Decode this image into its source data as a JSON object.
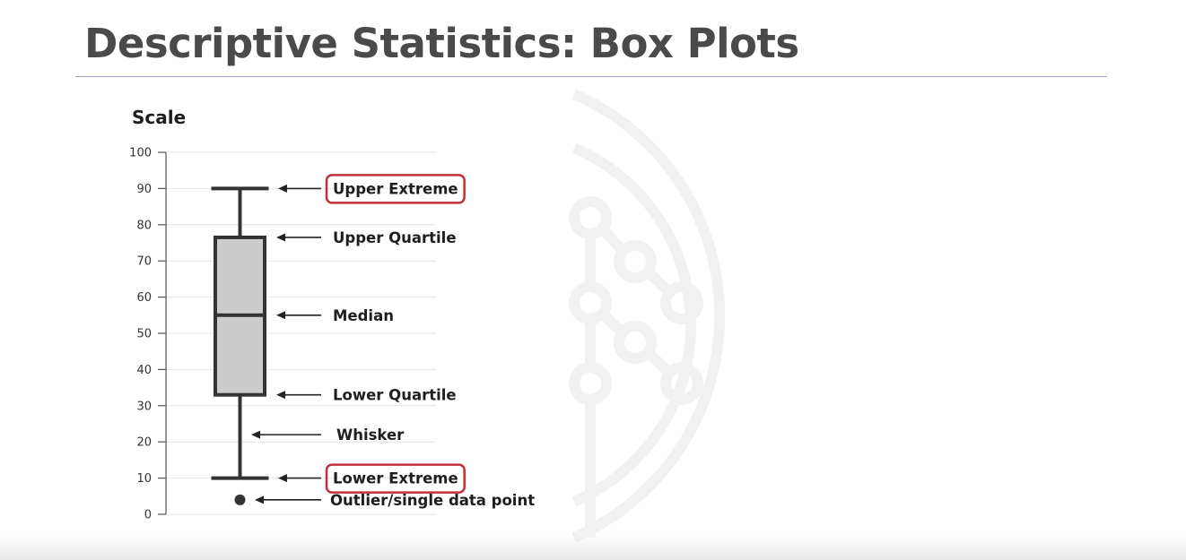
{
  "slide": {
    "title": "Descriptive Statistics: Box Plots"
  },
  "colors": {
    "title": "#4a4a4a",
    "rule": "#a7a3c9",
    "box_fill": "#cccccc",
    "box_stroke": "#333333",
    "highlight": "#c0303a",
    "watermark": "#f1f1f1"
  },
  "chart_data": {
    "type": "box",
    "axis_label": "Scale",
    "ylim": [
      0,
      100
    ],
    "ticks": [
      0,
      10,
      20,
      30,
      40,
      50,
      60,
      70,
      80,
      90,
      100
    ],
    "grid": true,
    "box": {
      "lower_extreme": 10,
      "lower_quartile": 33,
      "median": 55,
      "upper_quartile": 76.5,
      "upper_extreme": 90,
      "outlier": 4
    },
    "annotations": [
      {
        "label": "Upper Extreme",
        "value": 90,
        "target": "whisker-cap",
        "highlighted": true
      },
      {
        "label": "Upper Quartile",
        "value": 76.5,
        "target": "box-edge",
        "highlighted": false
      },
      {
        "label": "Median",
        "value": 55,
        "target": "box-edge",
        "highlighted": false
      },
      {
        "label": "Lower Quartile",
        "value": 33,
        "target": "box-edge",
        "highlighted": false
      },
      {
        "label": "Whisker",
        "value": 22,
        "target": "whisker-line",
        "highlighted": false
      },
      {
        "label": "Lower Extreme",
        "value": 10,
        "target": "whisker-cap",
        "highlighted": true
      },
      {
        "label": "Outlier/single data point",
        "value": 4,
        "target": "outlier",
        "highlighted": false
      }
    ]
  }
}
